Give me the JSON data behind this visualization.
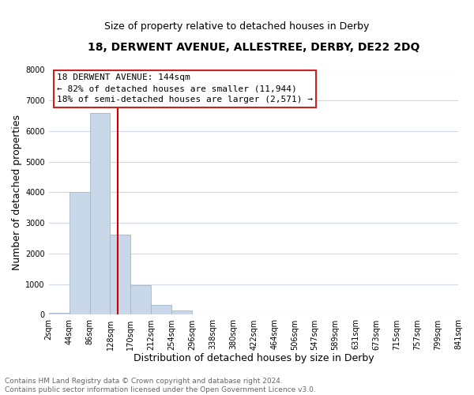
{
  "title": "18, DERWENT AVENUE, ALLESTREE, DERBY, DE22 2DQ",
  "subtitle": "Size of property relative to detached houses in Derby",
  "xlabel": "Distribution of detached houses by size in Derby",
  "ylabel": "Number of detached properties",
  "bin_edges": [
    2,
    44,
    86,
    128,
    170,
    212,
    254,
    296,
    338,
    380,
    422,
    464,
    506,
    547,
    589,
    631,
    673,
    715,
    757,
    799,
    841
  ],
  "bar_heights": [
    60,
    4000,
    6600,
    2620,
    960,
    320,
    130,
    0,
    0,
    0,
    0,
    0,
    0,
    0,
    0,
    0,
    0,
    0,
    0,
    0
  ],
  "bar_color": "#c8d8e8",
  "bar_edge_color": "#a0b8cc",
  "vline_x": 144,
  "vline_color": "#cc0000",
  "ylim": [
    0,
    8000
  ],
  "yticks": [
    0,
    1000,
    2000,
    3000,
    4000,
    5000,
    6000,
    7000,
    8000
  ],
  "tick_labels": [
    "2sqm",
    "44sqm",
    "86sqm",
    "128sqm",
    "170sqm",
    "212sqm",
    "254sqm",
    "296sqm",
    "338sqm",
    "380sqm",
    "422sqm",
    "464sqm",
    "506sqm",
    "547sqm",
    "589sqm",
    "631sqm",
    "673sqm",
    "715sqm",
    "757sqm",
    "799sqm",
    "841sqm"
  ],
  "annotation_title": "18 DERWENT AVENUE: 144sqm",
  "annotation_line1": "← 82% of detached houses are smaller (11,944)",
  "annotation_line2": "18% of semi-detached houses are larger (2,571) →",
  "footer_line1": "Contains HM Land Registry data © Crown copyright and database right 2024.",
  "footer_line2": "Contains public sector information licensed under the Open Government Licence v3.0.",
  "background_color": "#ffffff",
  "grid_color": "#d0d8e4",
  "title_fontsize": 10,
  "subtitle_fontsize": 9,
  "axis_label_fontsize": 9,
  "tick_fontsize": 7,
  "footer_fontsize": 6.5,
  "ann_fontsize": 8
}
